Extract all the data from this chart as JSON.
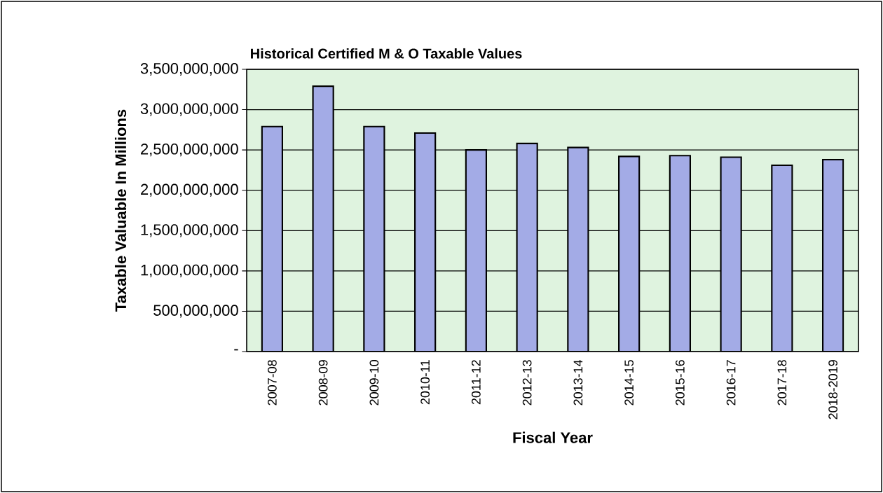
{
  "chart_data": {
    "type": "bar",
    "title": "Historical Certified M & O Taxable Values",
    "xlabel": "Fiscal Year",
    "ylabel": "Taxable Valuable In Millions",
    "categories": [
      "2007-08",
      "2008-09",
      "2009-10",
      "2010-11",
      "2011-12",
      "2012-13",
      "2013-14",
      "2014-15",
      "2015-16",
      "2016-17",
      "2017-18",
      "2018-2019"
    ],
    "values": [
      2790000000,
      3290000000,
      2790000000,
      2710000000,
      2500000000,
      2580000000,
      2530000000,
      2420000000,
      2430000000,
      2410000000,
      2310000000,
      2380000000
    ],
    "color": "#a3abe6",
    "ylim": [
      0,
      3500000000
    ],
    "yticks": [
      {
        "value": 0,
        "label": "-"
      },
      {
        "value": 500000000,
        "label": "500,000,000"
      },
      {
        "value": 1000000000,
        "label": "1,000,000,000"
      },
      {
        "value": 1500000000,
        "label": "1,500,000,000"
      },
      {
        "value": 2000000000,
        "label": "2,000,000,000"
      },
      {
        "value": 2500000000,
        "label": "2,500,000,000"
      },
      {
        "value": 3000000000,
        "label": "3,000,000,000"
      },
      {
        "value": 3500000000,
        "label": "3,500,000,000"
      }
    ],
    "grid": "y"
  }
}
